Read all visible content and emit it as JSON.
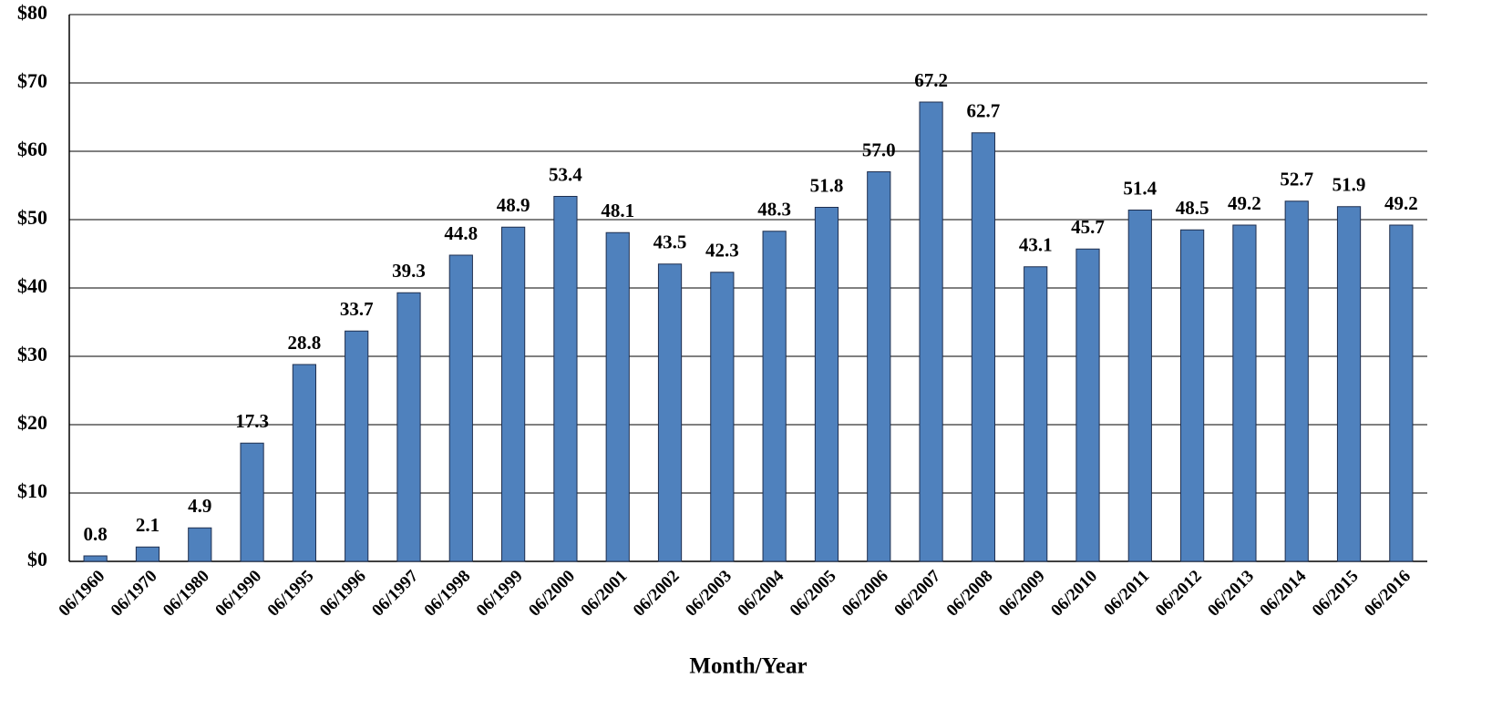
{
  "chart_data": {
    "type": "bar",
    "x_label": "Month/Year",
    "categories": [
      "06/1960",
      "06/1970",
      "06/1980",
      "06/1990",
      "06/1995",
      "06/1996",
      "06/1997",
      "06/1998",
      "06/1999",
      "06/2000",
      "06/2001",
      "06/2002",
      "06/2003",
      "06/2004",
      "06/2005",
      "06/2006",
      "06/2007",
      "06/2008",
      "06/2009",
      "06/2010",
      "06/2011",
      "06/2012",
      "06/2013",
      "06/2014",
      "06/2015",
      "06/2016"
    ],
    "values": [
      0.8,
      2.1,
      4.9,
      17.3,
      28.8,
      33.7,
      39.3,
      44.8,
      48.9,
      53.4,
      48.1,
      43.5,
      42.3,
      48.3,
      51.8,
      57.0,
      67.2,
      62.7,
      43.1,
      45.7,
      51.4,
      48.5,
      49.2,
      52.7,
      51.9,
      49.2
    ],
    "value_labels": [
      "0.8",
      "2.1",
      "4.9",
      "17.3",
      "28.8",
      "33.7",
      "39.3",
      "44.8",
      "48.9",
      "53.4",
      "48.1",
      "43.5",
      "42.3",
      "48.3",
      "51.8",
      "57.0",
      "67.2",
      "62.7",
      "43.1",
      "45.7",
      "51.4",
      "48.5",
      "49.2",
      "52.7",
      "51.9",
      "49.2"
    ],
    "color": "#4f81bd",
    "ylim": [
      0,
      80
    ],
    "yticks": [
      {
        "value": 0,
        "label": "$0"
      },
      {
        "value": 10,
        "label": "$10"
      },
      {
        "value": 20,
        "label": "$20"
      },
      {
        "value": 30,
        "label": "$30"
      },
      {
        "value": 40,
        "label": "$40"
      },
      {
        "value": 50,
        "label": "$50"
      },
      {
        "value": 60,
        "label": "$60"
      },
      {
        "value": 70,
        "label": "$70"
      },
      {
        "value": 80,
        "label": "$80"
      }
    ],
    "grid": true
  }
}
